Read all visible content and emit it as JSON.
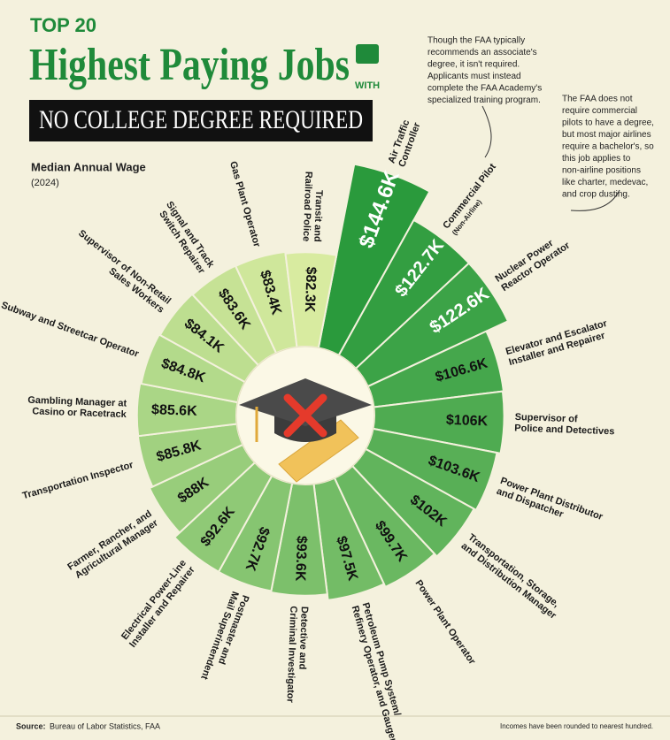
{
  "chart_data": {
    "type": "radial-bar",
    "kicker": "TOP 20",
    "title": "Highest Paying Jobs",
    "title_with": "WITH",
    "subtitle": "NO COLLEGE DEGREE REQUIRED",
    "value_title": "Median Annual Wage",
    "value_subtitle": "(2024)",
    "categories": [
      [
        "Air Traffic",
        "Controller"
      ],
      [
        "Commercial Pilot",
        "(Non-Airline)"
      ],
      [
        "Nuclear Power",
        "Reactor Operator"
      ],
      [
        "Elevator and Escalator",
        "Installer and Repairer"
      ],
      [
        "Supervisor of",
        "Police and Detectives"
      ],
      [
        "Power Plant Distributor",
        "and Dispatcher"
      ],
      [
        "Transportation, Storage,",
        "and Distribution Manager"
      ],
      [
        "Power Plant Operator"
      ],
      [
        "Petroleum Pump System/",
        "Refinery Operator, and Gauger"
      ],
      [
        "Detective and",
        "Criminal Investigator"
      ],
      [
        "Postmaster and",
        "Mail Superintendent"
      ],
      [
        "Electrical Power-Line",
        "Installer and Repairer"
      ],
      [
        "Farmer, Rancher, and",
        "Agricultural Manager"
      ],
      [
        "Transportation Inspector"
      ],
      [
        "Gambling Manager at",
        "Casino or Racetrack"
      ],
      [
        "Subway and Streetcar Operator"
      ],
      [
        "Supervisor of Non-Retail",
        "Sales Workers"
      ],
      [
        "Signal and Track",
        "Switch Repairer"
      ],
      [
        "Gas Plant Operator"
      ],
      [
        "Transit and",
        "Railroad Police"
      ]
    ],
    "values": [
      144.6,
      122.7,
      122.6,
      106.6,
      106,
      103.6,
      102,
      99.7,
      97.5,
      93.6,
      92.7,
      92.6,
      88,
      85.8,
      85.6,
      84.8,
      84.1,
      83.6,
      83.4,
      82.3
    ],
    "value_labels": [
      "$144.6K",
      "$122.7K",
      "$122.6K",
      "$106.6K",
      "$106K",
      "$103.6K",
      "$102K",
      "$99.7K",
      "$97.5K",
      "$93.6K",
      "$92.7K",
      "$92.6K",
      "$88K",
      "$85.8K",
      "$85.6K",
      "$84.8K",
      "$84.1K",
      "$83.6K",
      "$83.4K",
      "$82.3K"
    ],
    "colors": [
      "#2a9a3c",
      "#d8eba0"
    ],
    "annotations": [
      [
        "Though the FAA typically",
        "recommends an associate's",
        "degree, it isn't required.",
        "Applicants must instead",
        "complete the FAA Academy's",
        "specialized training program."
      ],
      [
        "The FAA does not",
        "require commercial",
        "pilots to have a degree,",
        "but most major airlines",
        "require a bachelor's, so",
        "this job applies to",
        "non-airline positions",
        "like charter, medevac,",
        "and crop dusting."
      ]
    ],
    "source_label": "Source:",
    "source": "Bureau of Labor Statistics, FAA",
    "note": "Incomes have been rounded to nearest hundred."
  }
}
